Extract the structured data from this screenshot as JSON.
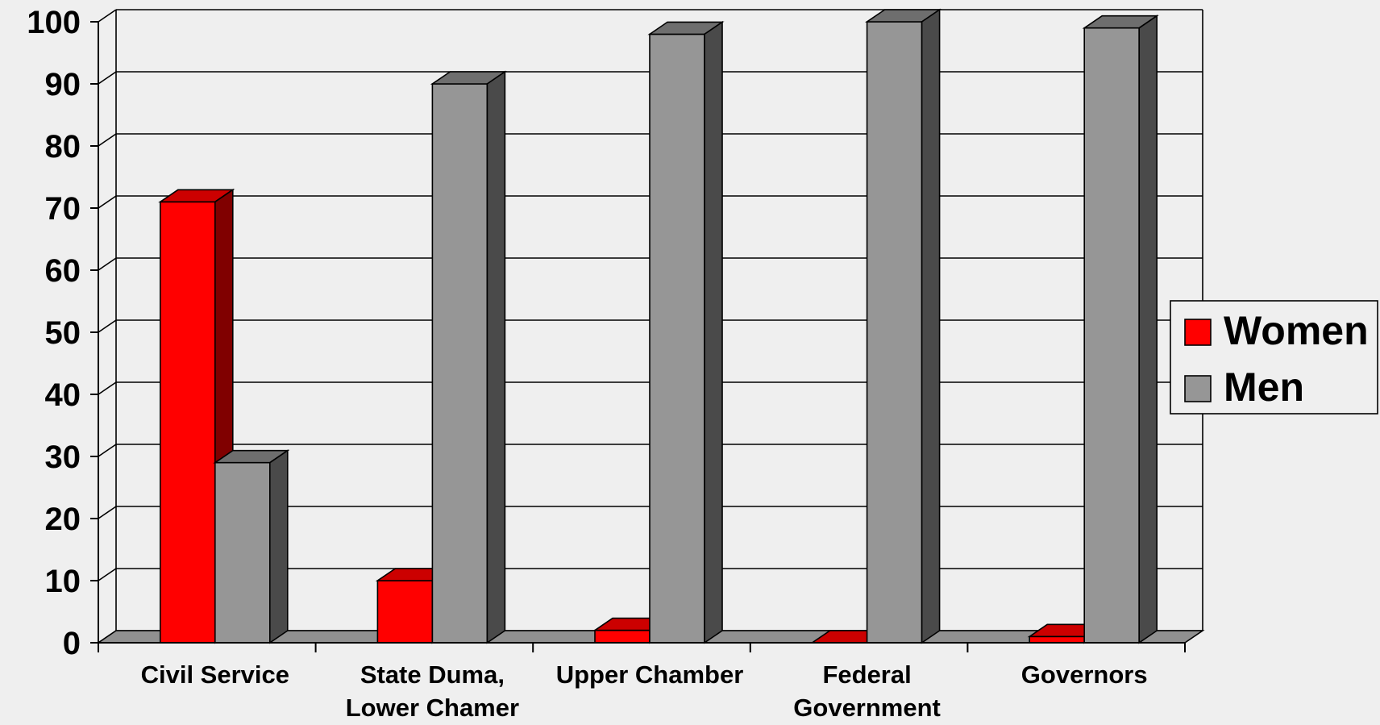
{
  "chart_data": {
    "type": "bar",
    "style": "3d-clustered-column",
    "categories": [
      [
        "Civil Service"
      ],
      [
        "State Duma,",
        "Lower Chamer"
      ],
      [
        "Upper Chamber"
      ],
      [
        "Federal",
        "Government"
      ],
      [
        "Governors"
      ]
    ],
    "series": [
      {
        "name": "Women",
        "values": [
          71,
          10,
          2,
          0,
          1
        ],
        "color": "#ff0000",
        "side_color": "#800000",
        "top_color": "#cc0000"
      },
      {
        "name": "Men",
        "values": [
          29,
          90,
          98,
          100,
          99
        ],
        "color": "#969696",
        "side_color": "#4a4a4a",
        "top_color": "#6e6e6e"
      }
    ],
    "ylim": [
      0,
      100
    ],
    "yticks": [
      "0",
      "10",
      "20",
      "30",
      "40",
      "50",
      "60",
      "70",
      "80",
      "90",
      "100"
    ],
    "grid": true,
    "legend_position": "right"
  }
}
